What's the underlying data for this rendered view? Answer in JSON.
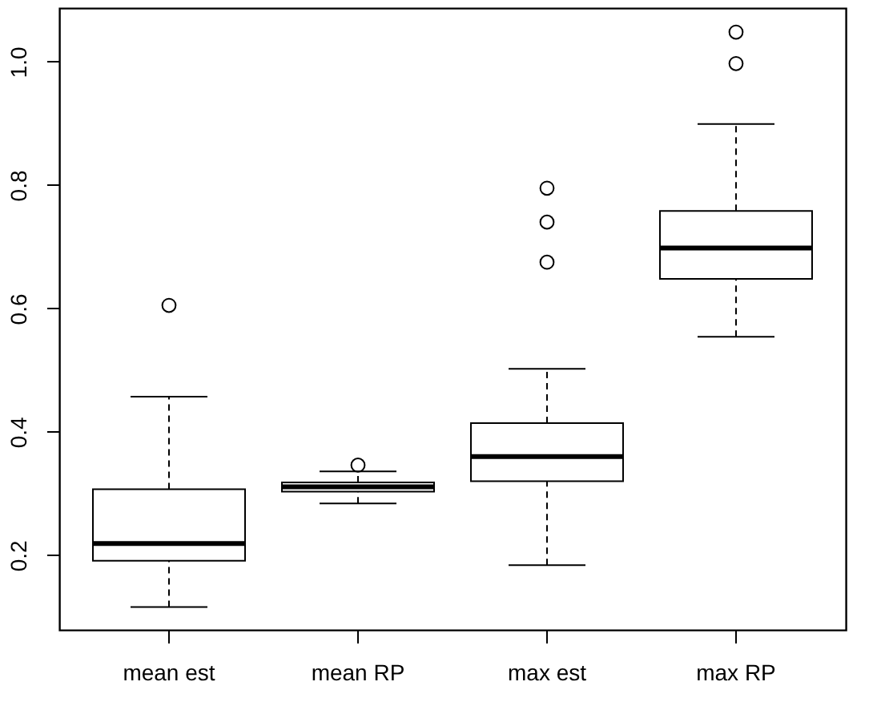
{
  "chart_data": {
    "type": "box",
    "categories": [
      "mean est",
      "mean RP",
      "max est",
      "max RP"
    ],
    "boxes": [
      {
        "low": 0.116,
        "q1": 0.191,
        "median": 0.219,
        "q3": 0.307,
        "high": 0.457,
        "outliers": [
          0.605
        ]
      },
      {
        "low": 0.284,
        "q1": 0.303,
        "median": 0.311,
        "q3": 0.318,
        "high": 0.336,
        "outliers": [
          0.346
        ]
      },
      {
        "low": 0.184,
        "q1": 0.32,
        "median": 0.36,
        "q3": 0.414,
        "high": 0.502,
        "outliers": [
          0.675,
          0.74,
          0.795
        ]
      },
      {
        "low": 0.554,
        "q1": 0.648,
        "median": 0.698,
        "q3": 0.758,
        "high": 0.899,
        "outliers": [
          0.997,
          1.048
        ]
      }
    ],
    "ylim": [
      0.079,
      1.087
    ],
    "yticks": [
      0.2,
      0.4,
      0.6,
      0.8,
      {
        "value": 1,
        "label": "1.0"
      }
    ],
    "grid": false
  }
}
